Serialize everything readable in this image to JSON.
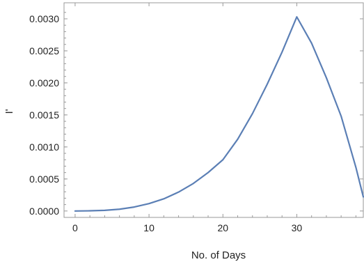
{
  "chart_data": {
    "type": "line",
    "title": "",
    "xlabel": "No. of Days",
    "ylabel": "I'",
    "xlim": [
      -1.5,
      39
    ],
    "ylim": [
      -0.0001,
      0.00325
    ],
    "x_ticks": [
      0,
      10,
      20,
      30
    ],
    "x_tick_labels": [
      "0",
      "10",
      "20",
      "30"
    ],
    "y_ticks": [
      0,
      0.0005,
      0.001,
      0.0015,
      0.002,
      0.0025,
      0.003
    ],
    "y_tick_labels": [
      "0.0000",
      "0.0005",
      "0.0010",
      "0.0015",
      "0.0020",
      "0.0025",
      "0.0030"
    ],
    "grid": false,
    "series": [
      {
        "color": "#5b7fb5",
        "x": [
          0,
          2,
          4,
          6,
          8,
          10,
          12,
          14,
          16,
          18,
          20,
          22,
          24,
          26,
          28,
          30,
          32,
          34,
          36,
          38,
          39
        ],
        "y": [
          0.0,
          3e-06,
          1e-05,
          2.8e-05,
          6.2e-05,
          0.000115,
          0.00019,
          0.000295,
          0.00043,
          0.0006,
          0.0008,
          0.00112,
          0.00152,
          0.00198,
          0.00248,
          0.00303,
          0.00262,
          0.00208,
          0.00148,
          0.00068,
          0.00022
        ]
      }
    ]
  }
}
